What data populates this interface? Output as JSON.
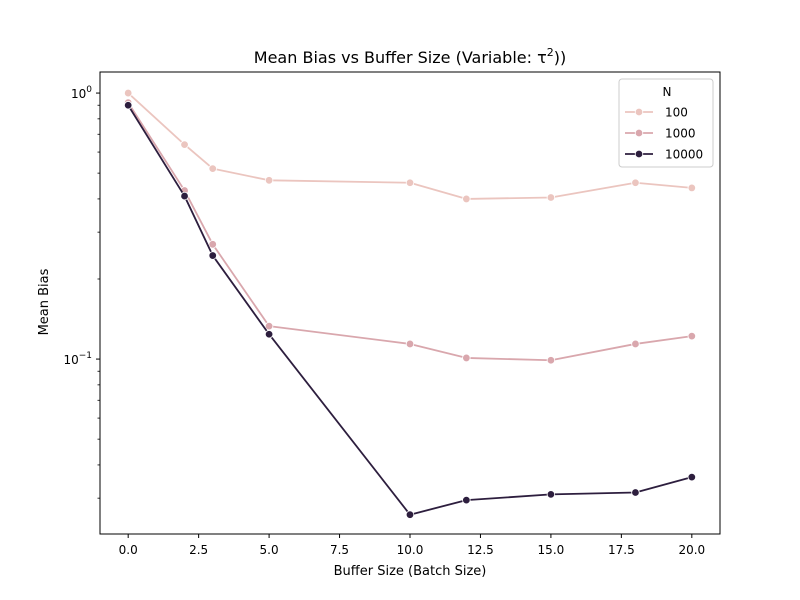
{
  "chart_data": {
    "type": "line",
    "title": "Mean Bias vs Buffer Size (Variable: τ²))",
    "title_parts": {
      "prefix": "Mean Bias vs Buffer Size (Variable: τ",
      "superscript": "2",
      "suffix": "))"
    },
    "xlabel": "Buffer Size (Batch Size)",
    "ylabel": "Mean Bias",
    "xlim": [
      -1.0,
      21.0
    ],
    "ylim": [
      0.022,
      1.2
    ],
    "yscale": "log",
    "x_ticks": [
      0.0,
      2.5,
      5.0,
      7.5,
      10.0,
      12.5,
      15.0,
      17.5,
      20.0
    ],
    "x_tick_labels": [
      "0.0",
      "2.5",
      "5.0",
      "7.5",
      "10.0",
      "12.5",
      "15.0",
      "17.5",
      "20.0"
    ],
    "y_major_ticks": [
      1.0,
      0.1
    ],
    "y_tick_labels": [
      {
        "base": "10",
        "exp": "0"
      },
      {
        "base": "10",
        "exp": "−1"
      }
    ],
    "y_minor_ticks": [
      0.03,
      0.04,
      0.05,
      0.06,
      0.07,
      0.08,
      0.09,
      0.2,
      0.3,
      0.4,
      0.5,
      0.6,
      0.7,
      0.8,
      0.9
    ],
    "grid": false,
    "legend": {
      "title": "N",
      "placement": "top-right"
    },
    "x": [
      0,
      2,
      3,
      5,
      10,
      12,
      15,
      18,
      20
    ],
    "series": [
      {
        "name": "100",
        "color": "#ebc5bf",
        "values": [
          1.0,
          0.64,
          0.52,
          0.47,
          0.46,
          0.4,
          0.405,
          0.46,
          0.44
        ]
      },
      {
        "name": "1000",
        "color": "#d9a7ad",
        "values": [
          0.92,
          0.43,
          0.27,
          0.133,
          0.114,
          0.101,
          0.099,
          0.114,
          0.122
        ]
      },
      {
        "name": "10000",
        "color": "#2d1e3e",
        "values": [
          0.9,
          0.41,
          0.245,
          0.124,
          0.026,
          0.0295,
          0.031,
          0.0315,
          0.036
        ]
      }
    ]
  }
}
